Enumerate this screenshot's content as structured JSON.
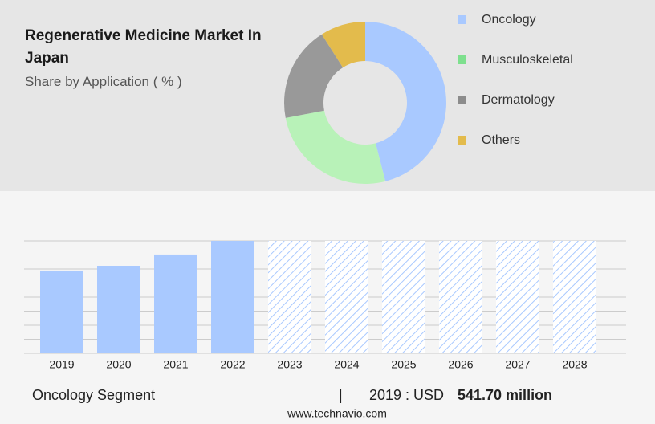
{
  "chart_data": [
    {
      "type": "pie",
      "title": "Regenerative Medicine Market In Japan",
      "subtitle": "Share by Application ( % )",
      "categories": [
        "Oncology",
        "Musculoskeletal",
        "Dermatology",
        "Others"
      ],
      "values": [
        46,
        26,
        19,
        9
      ],
      "colors": [
        "#a9c9ff",
        "#b8f2b8",
        "#999999",
        "#e3bb4c"
      ],
      "legend_colors": [
        "#a9c9ff",
        "#7ee08e",
        "#8c8c8c",
        "#e3bb4c"
      ]
    },
    {
      "type": "bar",
      "categories": [
        "2019",
        "2020",
        "2021",
        "2022",
        "2023",
        "2024",
        "2025",
        "2026",
        "2027",
        "2028"
      ],
      "values": [
        541.7,
        573,
        647,
        736,
        null,
        null,
        null,
        null,
        null,
        null
      ],
      "color": "#a9c9ff",
      "ylim": [
        0,
        736
      ],
      "grid": true
    }
  ],
  "footer": {
    "segment": "Oncology Segment",
    "separator": "|",
    "year_unit": "2019 : USD",
    "value": "541.70 million",
    "source": "www.technavio.com"
  }
}
